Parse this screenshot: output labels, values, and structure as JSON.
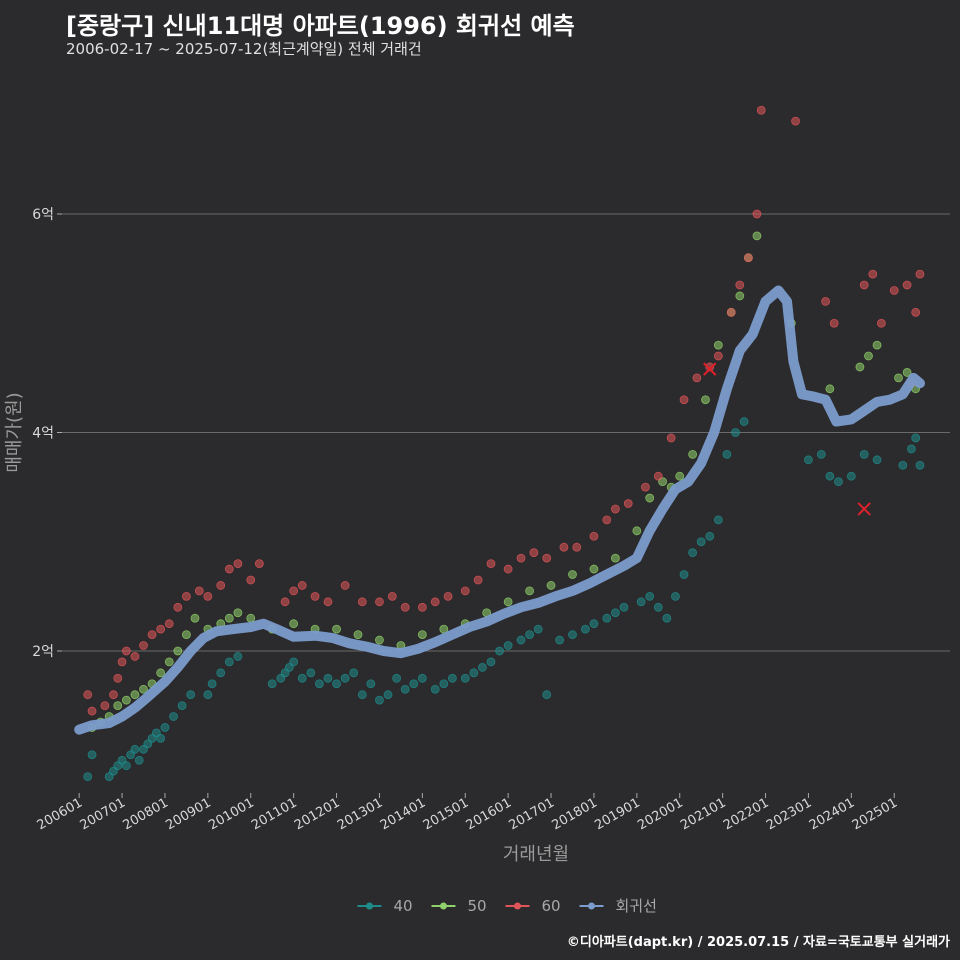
{
  "title": "[중랑구] 신내11대명 아파트(1996) 회귀선 예측",
  "subtitle": "2006-02-17 ~ 2025-07-12(최근계약일) 전체 거래건",
  "footer": "©디아파트(dapt.kr) / 2025.07.15 / 자료=국토교통부 실거래가",
  "colors": {
    "background": "#2b2a2c",
    "grid": "#6a6a6a",
    "s40": "#1f8c8c",
    "s50": "#8fd16a",
    "s60": "#e0555a",
    "regression": "#7b9ccc",
    "cancel_mark": "#e0202a"
  },
  "chart_data": {
    "type": "scatter",
    "title": "[중랑구] 신내11대명 아파트(1996) 회귀선 예측",
    "xlabel": "거래년월",
    "ylabel": "매매가(원)",
    "x_unit": "year",
    "xlim": [
      2005.6,
      2026.3
    ],
    "ylim": [
      0.7,
      7.3
    ],
    "yticks": [
      2,
      4,
      6
    ],
    "ytick_labels": [
      "2억",
      "4억",
      "6억"
    ],
    "xticks": [
      2006,
      2007,
      2008,
      2009,
      2010,
      2011,
      2012,
      2013,
      2014,
      2015,
      2016,
      2017,
      2018,
      2019,
      2020,
      2021,
      2022,
      2023,
      2024,
      2025
    ],
    "xtick_labels": [
      "200601",
      "200701",
      "200801",
      "200901",
      "201001",
      "201101",
      "201201",
      "201301",
      "201401",
      "201501",
      "201601",
      "201701",
      "201801",
      "201901",
      "202001",
      "202101",
      "202201",
      "202301",
      "202401",
      "202501"
    ],
    "grid": true,
    "legend_position": "bottom",
    "series": [
      {
        "name": "40",
        "color": "#1f8c8c",
        "points": [
          [
            2006.2,
            0.85
          ],
          [
            2006.3,
            1.05
          ],
          [
            2006.7,
            0.85
          ],
          [
            2006.8,
            0.9
          ],
          [
            2006.9,
            0.95
          ],
          [
            2007.0,
            1.0
          ],
          [
            2007.1,
            0.95
          ],
          [
            2007.2,
            1.05
          ],
          [
            2007.3,
            1.1
          ],
          [
            2007.4,
            1.0
          ],
          [
            2007.5,
            1.1
          ],
          [
            2007.6,
            1.15
          ],
          [
            2007.7,
            1.2
          ],
          [
            2007.8,
            1.25
          ],
          [
            2007.9,
            1.2
          ],
          [
            2008.0,
            1.3
          ],
          [
            2008.2,
            1.4
          ],
          [
            2008.4,
            1.5
          ],
          [
            2008.6,
            1.6
          ],
          [
            2009.0,
            1.6
          ],
          [
            2009.1,
            1.7
          ],
          [
            2009.3,
            1.8
          ],
          [
            2009.5,
            1.9
          ],
          [
            2009.7,
            1.95
          ],
          [
            2010.5,
            1.7
          ],
          [
            2010.7,
            1.75
          ],
          [
            2010.8,
            1.8
          ],
          [
            2010.9,
            1.85
          ],
          [
            2011.0,
            1.9
          ],
          [
            2011.2,
            1.75
          ],
          [
            2011.4,
            1.8
          ],
          [
            2011.6,
            1.7
          ],
          [
            2011.8,
            1.75
          ],
          [
            2012.0,
            1.7
          ],
          [
            2012.2,
            1.75
          ],
          [
            2012.4,
            1.8
          ],
          [
            2012.6,
            1.6
          ],
          [
            2012.8,
            1.7
          ],
          [
            2013.0,
            1.55
          ],
          [
            2013.2,
            1.6
          ],
          [
            2013.4,
            1.75
          ],
          [
            2013.6,
            1.65
          ],
          [
            2013.8,
            1.7
          ],
          [
            2014.0,
            1.75
          ],
          [
            2014.3,
            1.65
          ],
          [
            2014.5,
            1.7
          ],
          [
            2014.7,
            1.75
          ],
          [
            2015.0,
            1.75
          ],
          [
            2015.2,
            1.8
          ],
          [
            2015.4,
            1.85
          ],
          [
            2015.6,
            1.9
          ],
          [
            2015.8,
            2.0
          ],
          [
            2016.0,
            2.05
          ],
          [
            2016.3,
            2.1
          ],
          [
            2016.5,
            2.15
          ],
          [
            2016.7,
            2.2
          ],
          [
            2016.9,
            1.6
          ],
          [
            2017.2,
            2.1
          ],
          [
            2017.5,
            2.15
          ],
          [
            2017.8,
            2.2
          ],
          [
            2018.0,
            2.25
          ],
          [
            2018.3,
            2.3
          ],
          [
            2018.5,
            2.35
          ],
          [
            2018.7,
            2.4
          ],
          [
            2019.1,
            2.45
          ],
          [
            2019.3,
            2.5
          ],
          [
            2019.5,
            2.4
          ],
          [
            2019.7,
            2.3
          ],
          [
            2019.9,
            2.5
          ],
          [
            2020.1,
            2.7
          ],
          [
            2020.3,
            2.9
          ],
          [
            2020.5,
            3.0
          ],
          [
            2020.7,
            3.05
          ],
          [
            2020.9,
            3.2
          ],
          [
            2021.1,
            3.8
          ],
          [
            2021.3,
            4.0
          ],
          [
            2021.5,
            4.1
          ],
          [
            2023.0,
            3.75
          ],
          [
            2023.3,
            3.8
          ],
          [
            2023.5,
            3.6
          ],
          [
            2023.7,
            3.55
          ],
          [
            2024.0,
            3.6
          ],
          [
            2024.3,
            3.8
          ],
          [
            2024.6,
            3.75
          ],
          [
            2025.2,
            3.7
          ],
          [
            2025.4,
            3.85
          ],
          [
            2025.5,
            3.95
          ],
          [
            2025.6,
            3.7
          ]
        ]
      },
      {
        "name": "50",
        "color": "#8fd16a",
        "points": [
          [
            2006.3,
            1.3
          ],
          [
            2006.5,
            1.35
          ],
          [
            2006.7,
            1.4
          ],
          [
            2006.9,
            1.5
          ],
          [
            2007.1,
            1.55
          ],
          [
            2007.3,
            1.6
          ],
          [
            2007.5,
            1.65
          ],
          [
            2007.7,
            1.7
          ],
          [
            2007.9,
            1.8
          ],
          [
            2008.1,
            1.9
          ],
          [
            2008.3,
            2.0
          ],
          [
            2008.5,
            2.15
          ],
          [
            2008.7,
            2.3
          ],
          [
            2009.0,
            2.2
          ],
          [
            2009.3,
            2.25
          ],
          [
            2009.5,
            2.3
          ],
          [
            2009.7,
            2.35
          ],
          [
            2010.0,
            2.3
          ],
          [
            2010.5,
            2.2
          ],
          [
            2011.0,
            2.25
          ],
          [
            2011.5,
            2.2
          ],
          [
            2012.0,
            2.2
          ],
          [
            2012.5,
            2.15
          ],
          [
            2013.0,
            2.1
          ],
          [
            2013.5,
            2.05
          ],
          [
            2014.0,
            2.15
          ],
          [
            2014.5,
            2.2
          ],
          [
            2015.0,
            2.25
          ],
          [
            2015.5,
            2.35
          ],
          [
            2016.0,
            2.45
          ],
          [
            2016.5,
            2.55
          ],
          [
            2017.0,
            2.6
          ],
          [
            2017.5,
            2.7
          ],
          [
            2018.0,
            2.75
          ],
          [
            2018.5,
            2.85
          ],
          [
            2019.0,
            3.1
          ],
          [
            2019.3,
            3.4
          ],
          [
            2019.6,
            3.55
          ],
          [
            2019.8,
            3.5
          ],
          [
            2020.0,
            3.6
          ],
          [
            2020.3,
            3.8
          ],
          [
            2020.6,
            4.3
          ],
          [
            2020.9,
            4.8
          ],
          [
            2021.2,
            5.1
          ],
          [
            2021.4,
            5.25
          ],
          [
            2021.6,
            5.6
          ],
          [
            2021.8,
            5.8
          ],
          [
            2022.6,
            5.0
          ],
          [
            2023.5,
            4.4
          ],
          [
            2024.2,
            4.6
          ],
          [
            2024.4,
            4.7
          ],
          [
            2024.6,
            4.8
          ],
          [
            2025.1,
            4.5
          ],
          [
            2025.3,
            4.55
          ],
          [
            2025.5,
            4.4
          ]
        ]
      },
      {
        "name": "60",
        "color": "#e0555a",
        "points": [
          [
            2006.2,
            1.6
          ],
          [
            2006.3,
            1.45
          ],
          [
            2006.6,
            1.5
          ],
          [
            2006.8,
            1.6
          ],
          [
            2006.9,
            1.75
          ],
          [
            2007.0,
            1.9
          ],
          [
            2007.1,
            2.0
          ],
          [
            2007.3,
            1.95
          ],
          [
            2007.5,
            2.05
          ],
          [
            2007.7,
            2.15
          ],
          [
            2007.9,
            2.2
          ],
          [
            2008.1,
            2.25
          ],
          [
            2008.3,
            2.4
          ],
          [
            2008.5,
            2.5
          ],
          [
            2008.8,
            2.55
          ],
          [
            2009.0,
            2.5
          ],
          [
            2009.3,
            2.6
          ],
          [
            2009.5,
            2.75
          ],
          [
            2009.7,
            2.8
          ],
          [
            2010.0,
            2.65
          ],
          [
            2010.2,
            2.8
          ],
          [
            2010.8,
            2.45
          ],
          [
            2011.0,
            2.55
          ],
          [
            2011.2,
            2.6
          ],
          [
            2011.5,
            2.5
          ],
          [
            2011.8,
            2.45
          ],
          [
            2012.2,
            2.6
          ],
          [
            2012.6,
            2.45
          ],
          [
            2013.0,
            2.45
          ],
          [
            2013.3,
            2.5
          ],
          [
            2013.6,
            2.4
          ],
          [
            2014.0,
            2.4
          ],
          [
            2014.3,
            2.45
          ],
          [
            2014.6,
            2.5
          ],
          [
            2015.0,
            2.55
          ],
          [
            2015.3,
            2.65
          ],
          [
            2015.6,
            2.8
          ],
          [
            2016.0,
            2.75
          ],
          [
            2016.3,
            2.85
          ],
          [
            2016.6,
            2.9
          ],
          [
            2016.9,
            2.85
          ],
          [
            2017.3,
            2.95
          ],
          [
            2017.6,
            2.95
          ],
          [
            2018.0,
            3.05
          ],
          [
            2018.3,
            3.2
          ],
          [
            2018.5,
            3.3
          ],
          [
            2018.8,
            3.35
          ],
          [
            2019.2,
            3.5
          ],
          [
            2019.5,
            3.6
          ],
          [
            2019.8,
            3.95
          ],
          [
            2020.1,
            4.3
          ],
          [
            2020.4,
            4.5
          ],
          [
            2020.7,
            4.6
          ],
          [
            2020.9,
            4.7
          ],
          [
            2021.2,
            5.1
          ],
          [
            2021.4,
            5.35
          ],
          [
            2021.6,
            5.6
          ],
          [
            2021.8,
            6.0
          ],
          [
            2021.9,
            6.95
          ],
          [
            2022.7,
            6.85
          ],
          [
            2023.4,
            5.2
          ],
          [
            2023.6,
            5.0
          ],
          [
            2024.3,
            5.35
          ],
          [
            2024.5,
            5.45
          ],
          [
            2024.7,
            5.0
          ],
          [
            2025.0,
            5.3
          ],
          [
            2025.3,
            5.35
          ],
          [
            2025.5,
            5.1
          ],
          [
            2025.6,
            5.45
          ],
          [
            2025.4,
            4.45
          ]
        ]
      },
      {
        "name": "회귀선",
        "color": "#7b9ccc",
        "line": true,
        "points": [
          [
            2006.0,
            1.28
          ],
          [
            2006.3,
            1.32
          ],
          [
            2006.7,
            1.34
          ],
          [
            2007.0,
            1.4
          ],
          [
            2007.3,
            1.48
          ],
          [
            2007.6,
            1.58
          ],
          [
            2008.0,
            1.72
          ],
          [
            2008.3,
            1.85
          ],
          [
            2008.6,
            2.0
          ],
          [
            2008.9,
            2.12
          ],
          [
            2009.2,
            2.18
          ],
          [
            2009.6,
            2.2
          ],
          [
            2010.0,
            2.22
          ],
          [
            2010.3,
            2.25
          ],
          [
            2010.6,
            2.2
          ],
          [
            2011.0,
            2.13
          ],
          [
            2011.5,
            2.14
          ],
          [
            2011.9,
            2.12
          ],
          [
            2012.3,
            2.07
          ],
          [
            2012.7,
            2.04
          ],
          [
            2013.1,
            2.0
          ],
          [
            2013.5,
            1.98
          ],
          [
            2013.9,
            2.02
          ],
          [
            2014.3,
            2.08
          ],
          [
            2014.7,
            2.15
          ],
          [
            2015.1,
            2.22
          ],
          [
            2015.5,
            2.27
          ],
          [
            2015.9,
            2.34
          ],
          [
            2016.3,
            2.4
          ],
          [
            2016.7,
            2.44
          ],
          [
            2017.1,
            2.5
          ],
          [
            2017.5,
            2.55
          ],
          [
            2017.9,
            2.62
          ],
          [
            2018.3,
            2.7
          ],
          [
            2018.7,
            2.78
          ],
          [
            2019.0,
            2.85
          ],
          [
            2019.3,
            3.1
          ],
          [
            2019.6,
            3.3
          ],
          [
            2019.9,
            3.48
          ],
          [
            2020.2,
            3.55
          ],
          [
            2020.5,
            3.72
          ],
          [
            2020.8,
            4.0
          ],
          [
            2021.1,
            4.4
          ],
          [
            2021.4,
            4.75
          ],
          [
            2021.7,
            4.9
          ],
          [
            2022.0,
            5.2
          ],
          [
            2022.3,
            5.3
          ],
          [
            2022.5,
            5.2
          ],
          [
            2022.65,
            4.65
          ],
          [
            2022.85,
            4.35
          ],
          [
            2023.1,
            4.33
          ],
          [
            2023.4,
            4.3
          ],
          [
            2023.65,
            4.1
          ],
          [
            2024.0,
            4.12
          ],
          [
            2024.3,
            4.2
          ],
          [
            2024.6,
            4.28
          ],
          [
            2024.9,
            4.3
          ],
          [
            2025.2,
            4.35
          ],
          [
            2025.45,
            4.5
          ],
          [
            2025.6,
            4.45
          ]
        ]
      }
    ],
    "cancel_marks": [
      [
        2020.7,
        4.58
      ],
      [
        2024.3,
        3.3
      ]
    ]
  },
  "legend": [
    {
      "label": "40",
      "color": "#1f8c8c"
    },
    {
      "label": "50",
      "color": "#8fd16a"
    },
    {
      "label": "60",
      "color": "#e0555a"
    },
    {
      "label": "회귀선",
      "color": "#7b9ccc"
    }
  ]
}
